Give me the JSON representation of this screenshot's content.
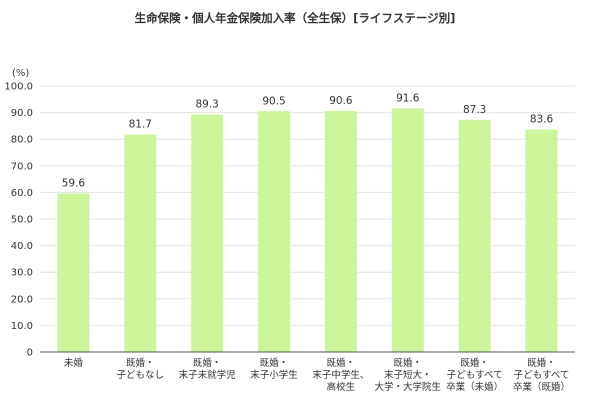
{
  "chart_data": {
    "type": "bar",
    "title": "生命保険・個人年金保険加入率（全生保）[ライフステージ別]",
    "y_unit": "(%)",
    "ylim": [
      0,
      100
    ],
    "y_ticks": [
      "0",
      "10.0",
      "20.0",
      "30.0",
      "40.0",
      "50.0",
      "60.0",
      "70.0",
      "80.0",
      "90.0",
      "100.0"
    ],
    "grid": true,
    "bar_color": "#ccf59a",
    "categories": [
      [
        "未婚"
      ],
      [
        "既婚・",
        "子どもなし"
      ],
      [
        "既婚・",
        "末子未就学児"
      ],
      [
        "既婚・",
        "末子小学生"
      ],
      [
        "既婚・",
        "末子中学生、",
        "高校生"
      ],
      [
        "既婚・",
        "末子短大・",
        "大学・大学院生"
      ],
      [
        "既婚・",
        "子どもすべて",
        "卒業（未婚）"
      ],
      [
        "既婚・",
        "子どもすべて",
        "卒業（既婚）"
      ]
    ],
    "values": [
      59.6,
      81.7,
      89.3,
      90.5,
      90.6,
      91.6,
      87.3,
      83.6
    ],
    "value_labels": [
      "59.6",
      "81.7",
      "89.3",
      "90.5",
      "90.6",
      "91.6",
      "87.3",
      "83.6"
    ]
  }
}
